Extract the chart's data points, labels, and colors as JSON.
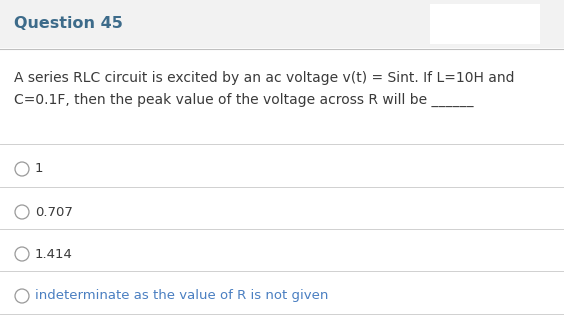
{
  "title": "Question 45",
  "title_fontsize": 11.5,
  "title_color": "#3d6b8a",
  "title_bg_color": "#f2f2f2",
  "body_bg_color": "#ffffff",
  "question_text_line1": "A series RLC circuit is excited by an ac voltage v(t) = Sint. If L=10H and",
  "question_text_line2": "C=0.1F, then the peak value of the voltage across R will be ______",
  "question_fontsize": 10.0,
  "question_color": "#3a3a3a",
  "options": [
    {
      "label": "1",
      "color": "#3a3a3a"
    },
    {
      "label": "0.707",
      "color": "#3a3a3a"
    },
    {
      "label": "1.414",
      "color": "#3a3a3a"
    },
    {
      "label": "indeterminate as the value of R is not given",
      "color": "#4a7fc1"
    }
  ],
  "option_fontsize": 9.5,
  "circle_color": "#999999",
  "line_color": "#d0d0d0",
  "separator_color": "#c0c0c0"
}
